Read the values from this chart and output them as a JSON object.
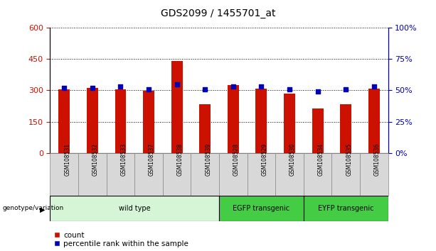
{
  "title": "GDS2099 / 1455701_at",
  "samples": [
    "GSM108531",
    "GSM108532",
    "GSM108533",
    "GSM108537",
    "GSM108538",
    "GSM108539",
    "GSM108528",
    "GSM108529",
    "GSM108530",
    "GSM108534",
    "GSM108535",
    "GSM108536"
  ],
  "counts": [
    305,
    310,
    305,
    298,
    440,
    233,
    325,
    308,
    285,
    215,
    233,
    308
  ],
  "percentile_ranks": [
    52,
    52,
    53,
    51,
    55,
    51,
    53,
    53,
    51,
    49,
    51,
    53
  ],
  "groups": [
    {
      "label": "wild type",
      "start": 0,
      "end": 6,
      "color": "#d6f5d6"
    },
    {
      "label": "EGFP transgenic",
      "start": 6,
      "end": 9,
      "color": "#44cc44"
    },
    {
      "label": "EYFP transgenic",
      "start": 9,
      "end": 12,
      "color": "#44cc44"
    }
  ],
  "ylim_left": [
    0,
    600
  ],
  "ylim_right": [
    0,
    100
  ],
  "yticks_left": [
    0,
    150,
    300,
    450,
    600
  ],
  "yticks_right": [
    0,
    25,
    50,
    75,
    100
  ],
  "bar_color": "#cc1100",
  "dot_color": "#0000bb",
  "legend_red_label": "count",
  "legend_blue_label": "percentile rank within the sample",
  "genotype_label": "genotype/variation",
  "left_axis_color": "#cc1100",
  "right_axis_color": "#0000bb",
  "sample_box_color": "#d8d8d8",
  "sample_box_edge": "#888888"
}
